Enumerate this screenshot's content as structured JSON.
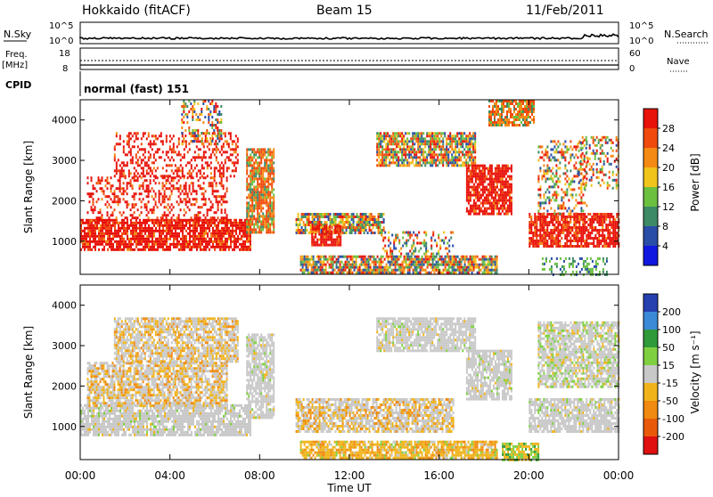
{
  "header": {
    "radar": "Hokkaido (fitACF)",
    "beam": "Beam 15",
    "date": "11/Feb/2011"
  },
  "top_panel": {
    "nsky_label": "N.Sky",
    "nsky_ticks": [
      "10^5",
      "10^0"
    ],
    "nsearch_label": "N.Search",
    "nsearch_ticks": [
      "10^5",
      "10^0"
    ],
    "freq_label": "Freq.",
    "freq_unit": "[MHz]",
    "freq_ticks": [
      "18",
      "8"
    ],
    "nave_label": "Nave",
    "nave_ticks": [
      "60",
      "0"
    ],
    "cpid_label": "CPID",
    "cpid_value": "normal (fast) 151"
  },
  "chart_data": [
    {
      "type": "heatmap",
      "name": "power",
      "ylabel": "Slant Range [km]",
      "ylim": [
        180,
        4500
      ],
      "yticks": [
        1000,
        2000,
        3000,
        4000
      ],
      "xlim": [
        0,
        24
      ],
      "colorbar_label": "Power [dB]",
      "colorbar_ticks": [
        "28",
        "24",
        "20",
        "16",
        "12",
        "8",
        "4"
      ],
      "colorbar_colors": [
        "#e8120a",
        "#f04a0d",
        "#f48a14",
        "#f0c41a",
        "#6cc040",
        "#3d8a66",
        "#2a4da8",
        "#1018e0"
      ],
      "scatter_regions": [
        {
          "t": [
            0.0,
            7.6
          ],
          "r": [
            800,
            1550
          ],
          "level": "high"
        },
        {
          "t": [
            0.3,
            6.5
          ],
          "r": [
            1500,
            2600
          ],
          "level": "high-sparse"
        },
        {
          "t": [
            1.5,
            7.0
          ],
          "r": [
            2600,
            3700
          ],
          "level": "high-sparse"
        },
        {
          "t": [
            4.5,
            6.3
          ],
          "r": [
            3400,
            4500
          ],
          "level": "mixed-sparse"
        },
        {
          "t": [
            7.4,
            8.6
          ],
          "r": [
            1200,
            3300
          ],
          "level": "mid"
        },
        {
          "t": [
            9.6,
            13.5
          ],
          "r": [
            1200,
            1700
          ],
          "level": "mixed"
        },
        {
          "t": [
            10.3,
            11.6
          ],
          "r": [
            900,
            1400
          ],
          "level": "high"
        },
        {
          "t": [
            9.8,
            18.6
          ],
          "r": [
            200,
            650
          ],
          "level": "mixed"
        },
        {
          "t": [
            13.4,
            16.6
          ],
          "r": [
            700,
            1250
          ],
          "level": "mixed-sparse"
        },
        {
          "t": [
            13.2,
            17.6
          ],
          "r": [
            2900,
            3700
          ],
          "level": "mixed"
        },
        {
          "t": [
            17.2,
            19.2
          ],
          "r": [
            1700,
            2900
          ],
          "level": "high"
        },
        {
          "t": [
            18.2,
            20.2
          ],
          "r": [
            3900,
            4500
          ],
          "level": "mid"
        },
        {
          "t": [
            20.0,
            24.0
          ],
          "r": [
            900,
            1700
          ],
          "level": "high"
        },
        {
          "t": [
            20.4,
            22.6
          ],
          "r": [
            1700,
            3500
          ],
          "level": "mixed-sparse"
        },
        {
          "t": [
            22.2,
            24.0
          ],
          "r": [
            2300,
            3600
          ],
          "level": "mixed-sparse"
        },
        {
          "t": [
            20.5,
            23.5
          ],
          "r": [
            200,
            600
          ],
          "level": "low-sparse"
        }
      ]
    },
    {
      "type": "heatmap",
      "name": "velocity",
      "ylabel": "Slant Range [km]",
      "ylim": [
        180,
        4500
      ],
      "yticks": [
        1000,
        2000,
        3000,
        4000
      ],
      "xlim": [
        0,
        24
      ],
      "xticks": [
        "00:00",
        "04:00",
        "08:00",
        "12:00",
        "16:00",
        "20:00",
        "00:00"
      ],
      "xlabel": "Time UT",
      "colorbar_label": "Velocity [m s⁻¹]",
      "colorbar_ticks": [
        "200",
        "100",
        "50",
        "15",
        "-15",
        "-50",
        "-100",
        "-200"
      ],
      "colorbar_colors": [
        "#2640b0",
        "#3a8ad8",
        "#2e9a3a",
        "#7fd040",
        "#c8c8c8",
        "#f0b41a",
        "#f08a10",
        "#e85a0a",
        "#e01010"
      ],
      "scatter_regions": [
        {
          "t": [
            0.0,
            7.6
          ],
          "r": [
            800,
            1550
          ],
          "level": "zero"
        },
        {
          "t": [
            0.3,
            6.5
          ],
          "r": [
            1500,
            2600
          ],
          "level": "zero-orange"
        },
        {
          "t": [
            1.5,
            7.0
          ],
          "r": [
            2600,
            3700
          ],
          "level": "zero-orange"
        },
        {
          "t": [
            7.4,
            8.6
          ],
          "r": [
            1200,
            3300
          ],
          "level": "zero"
        },
        {
          "t": [
            9.6,
            16.6
          ],
          "r": [
            900,
            1700
          ],
          "level": "zero-orange"
        },
        {
          "t": [
            9.8,
            18.6
          ],
          "r": [
            250,
            650
          ],
          "level": "orange"
        },
        {
          "t": [
            13.2,
            17.6
          ],
          "r": [
            2900,
            3700
          ],
          "level": "zero"
        },
        {
          "t": [
            17.2,
            19.2
          ],
          "r": [
            1700,
            2900
          ],
          "level": "zero"
        },
        {
          "t": [
            20.0,
            24.0
          ],
          "r": [
            900,
            1700
          ],
          "level": "zero"
        },
        {
          "t": [
            20.4,
            24.0
          ],
          "r": [
            2000,
            3600
          ],
          "level": "zero-green"
        },
        {
          "t": [
            18.8,
            20.4
          ],
          "r": [
            200,
            600
          ],
          "level": "orange-green"
        }
      ]
    }
  ]
}
